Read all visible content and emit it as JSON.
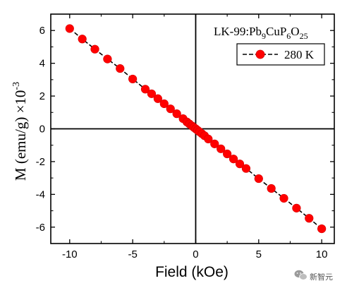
{
  "chart_data": {
    "type": "line",
    "xlabel": "Field (kOe)",
    "ylabel": {
      "main": "M (emu/g) ×10",
      "exponent": "-3"
    },
    "annotation": {
      "prefix": "LK-99:Pb",
      "sub1": "9",
      "mid1": "CuP",
      "sub2": "6",
      "mid2": "O",
      "sub3": "25"
    },
    "xlim": [
      -11.5,
      11
    ],
    "ylim": [
      -7,
      7
    ],
    "xticks": [
      -10,
      -5,
      0,
      5,
      10
    ],
    "yticks": [
      -6,
      -4,
      -2,
      0,
      2,
      4,
      6
    ],
    "grid": false,
    "legend_position": "top-right",
    "series": [
      {
        "name": "280 K",
        "color": "#ff0000",
        "line_color": "#000000",
        "line_style": "dashed",
        "marker": "circle",
        "x": [
          -10,
          -9,
          -8,
          -7,
          -6,
          -5,
          -4,
          -3.5,
          -3,
          -2.5,
          -2,
          -1.5,
          -1,
          -0.7,
          -0.5,
          -0.3,
          -0.15,
          0,
          0.15,
          0.3,
          0.5,
          0.7,
          1,
          1.5,
          2,
          2.5,
          3,
          3.5,
          4,
          5,
          6,
          7,
          8,
          9,
          10
        ],
        "y": [
          6.12,
          5.48,
          4.86,
          4.26,
          3.68,
          3.04,
          2.42,
          2.14,
          1.84,
          1.53,
          1.22,
          0.92,
          0.62,
          0.42,
          0.3,
          0.18,
          0.09,
          0,
          -0.09,
          -0.18,
          -0.3,
          -0.42,
          -0.62,
          -0.92,
          -1.22,
          -1.53,
          -1.84,
          -2.14,
          -2.42,
          -3.04,
          -3.64,
          -4.24,
          -4.84,
          -5.46,
          -6.1
        ]
      }
    ]
  },
  "watermark": {
    "text": "新智元",
    "icon": "wechat-icon"
  }
}
